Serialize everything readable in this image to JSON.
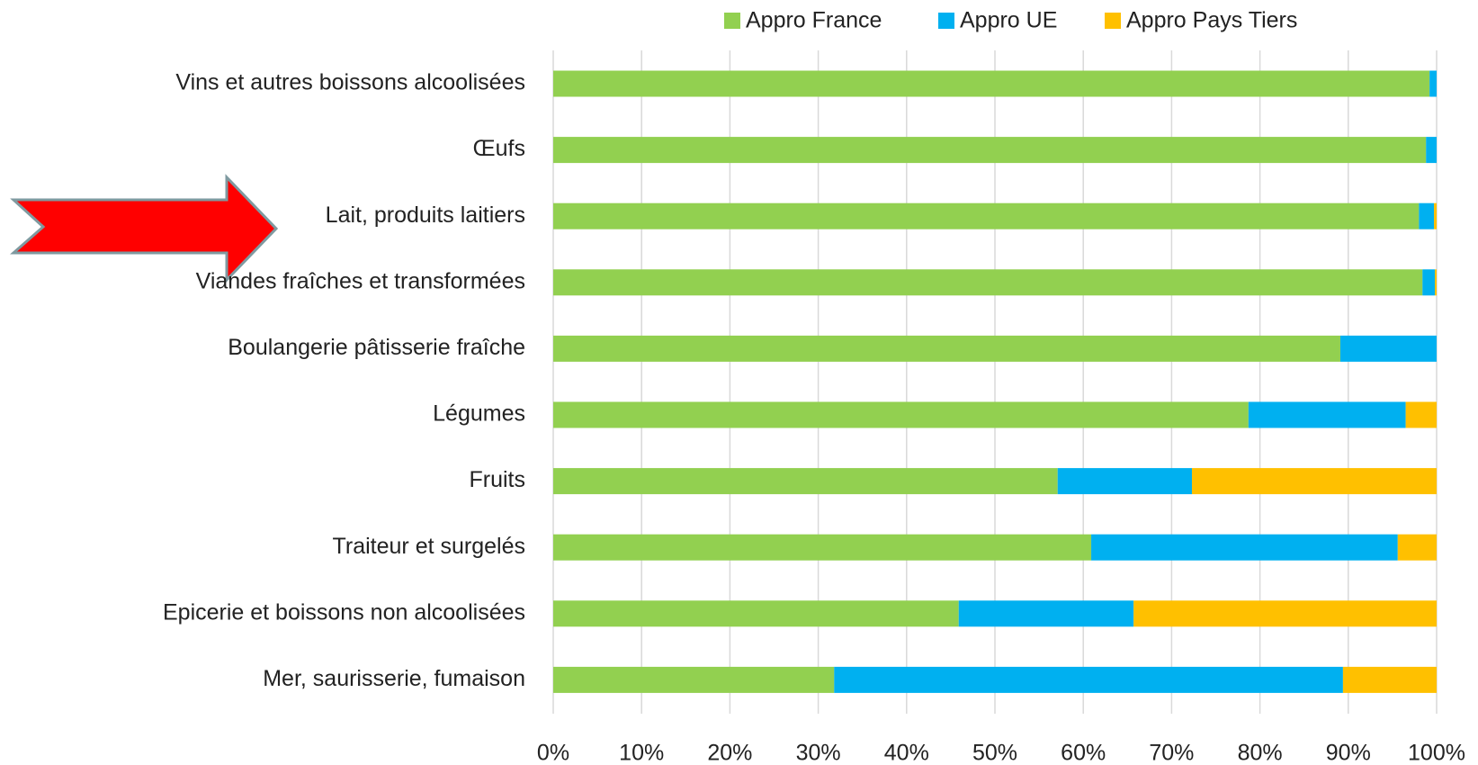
{
  "chart_data": {
    "type": "stacked-bar-horizontal",
    "categories": [
      "Vins et autres boissons alcoolisées",
      "Œufs",
      "Lait, produits laitiers",
      "Viandes fraîches et transformées",
      "Boulangerie pâtisserie fraîche",
      "Légumes",
      "Fruits",
      "Traiteur et surgelés",
      "Epicerie et boissons non alcoolisées",
      "Mer, saurisserie, fumaison"
    ],
    "series": [
      {
        "name": "Appro France",
        "color": "#92d050",
        "values": [
          99.2,
          98.8,
          98.0,
          98.4,
          89.1,
          78.7,
          57.1,
          60.9,
          45.9,
          31.8
        ]
      },
      {
        "name": "Appro UE",
        "color": "#00b0f0",
        "values": [
          0.8,
          1.2,
          1.7,
          1.4,
          10.9,
          17.8,
          15.2,
          34.7,
          19.8,
          57.6
        ]
      },
      {
        "name": "Appro Pays Tiers",
        "color": "#ffc000",
        "values": [
          0,
          0,
          0.3,
          0.2,
          0,
          3.5,
          27.7,
          4.4,
          34.3,
          10.6
        ]
      }
    ],
    "xlim": [
      0,
      100
    ],
    "xticks": [
      {
        "value": 0,
        "label": "0%"
      },
      {
        "value": 10,
        "label": "10%"
      },
      {
        "value": 20,
        "label": "20%"
      },
      {
        "value": 30,
        "label": "30%"
      },
      {
        "value": 40,
        "label": "40%"
      },
      {
        "value": 50,
        "label": "50%"
      },
      {
        "value": 60,
        "label": "60%"
      },
      {
        "value": 70,
        "label": "70%"
      },
      {
        "value": 80,
        "label": "80%"
      },
      {
        "value": 90,
        "label": "90%"
      },
      {
        "value": 100,
        "label": "100%"
      }
    ],
    "grid": true,
    "legend": "top"
  }
}
